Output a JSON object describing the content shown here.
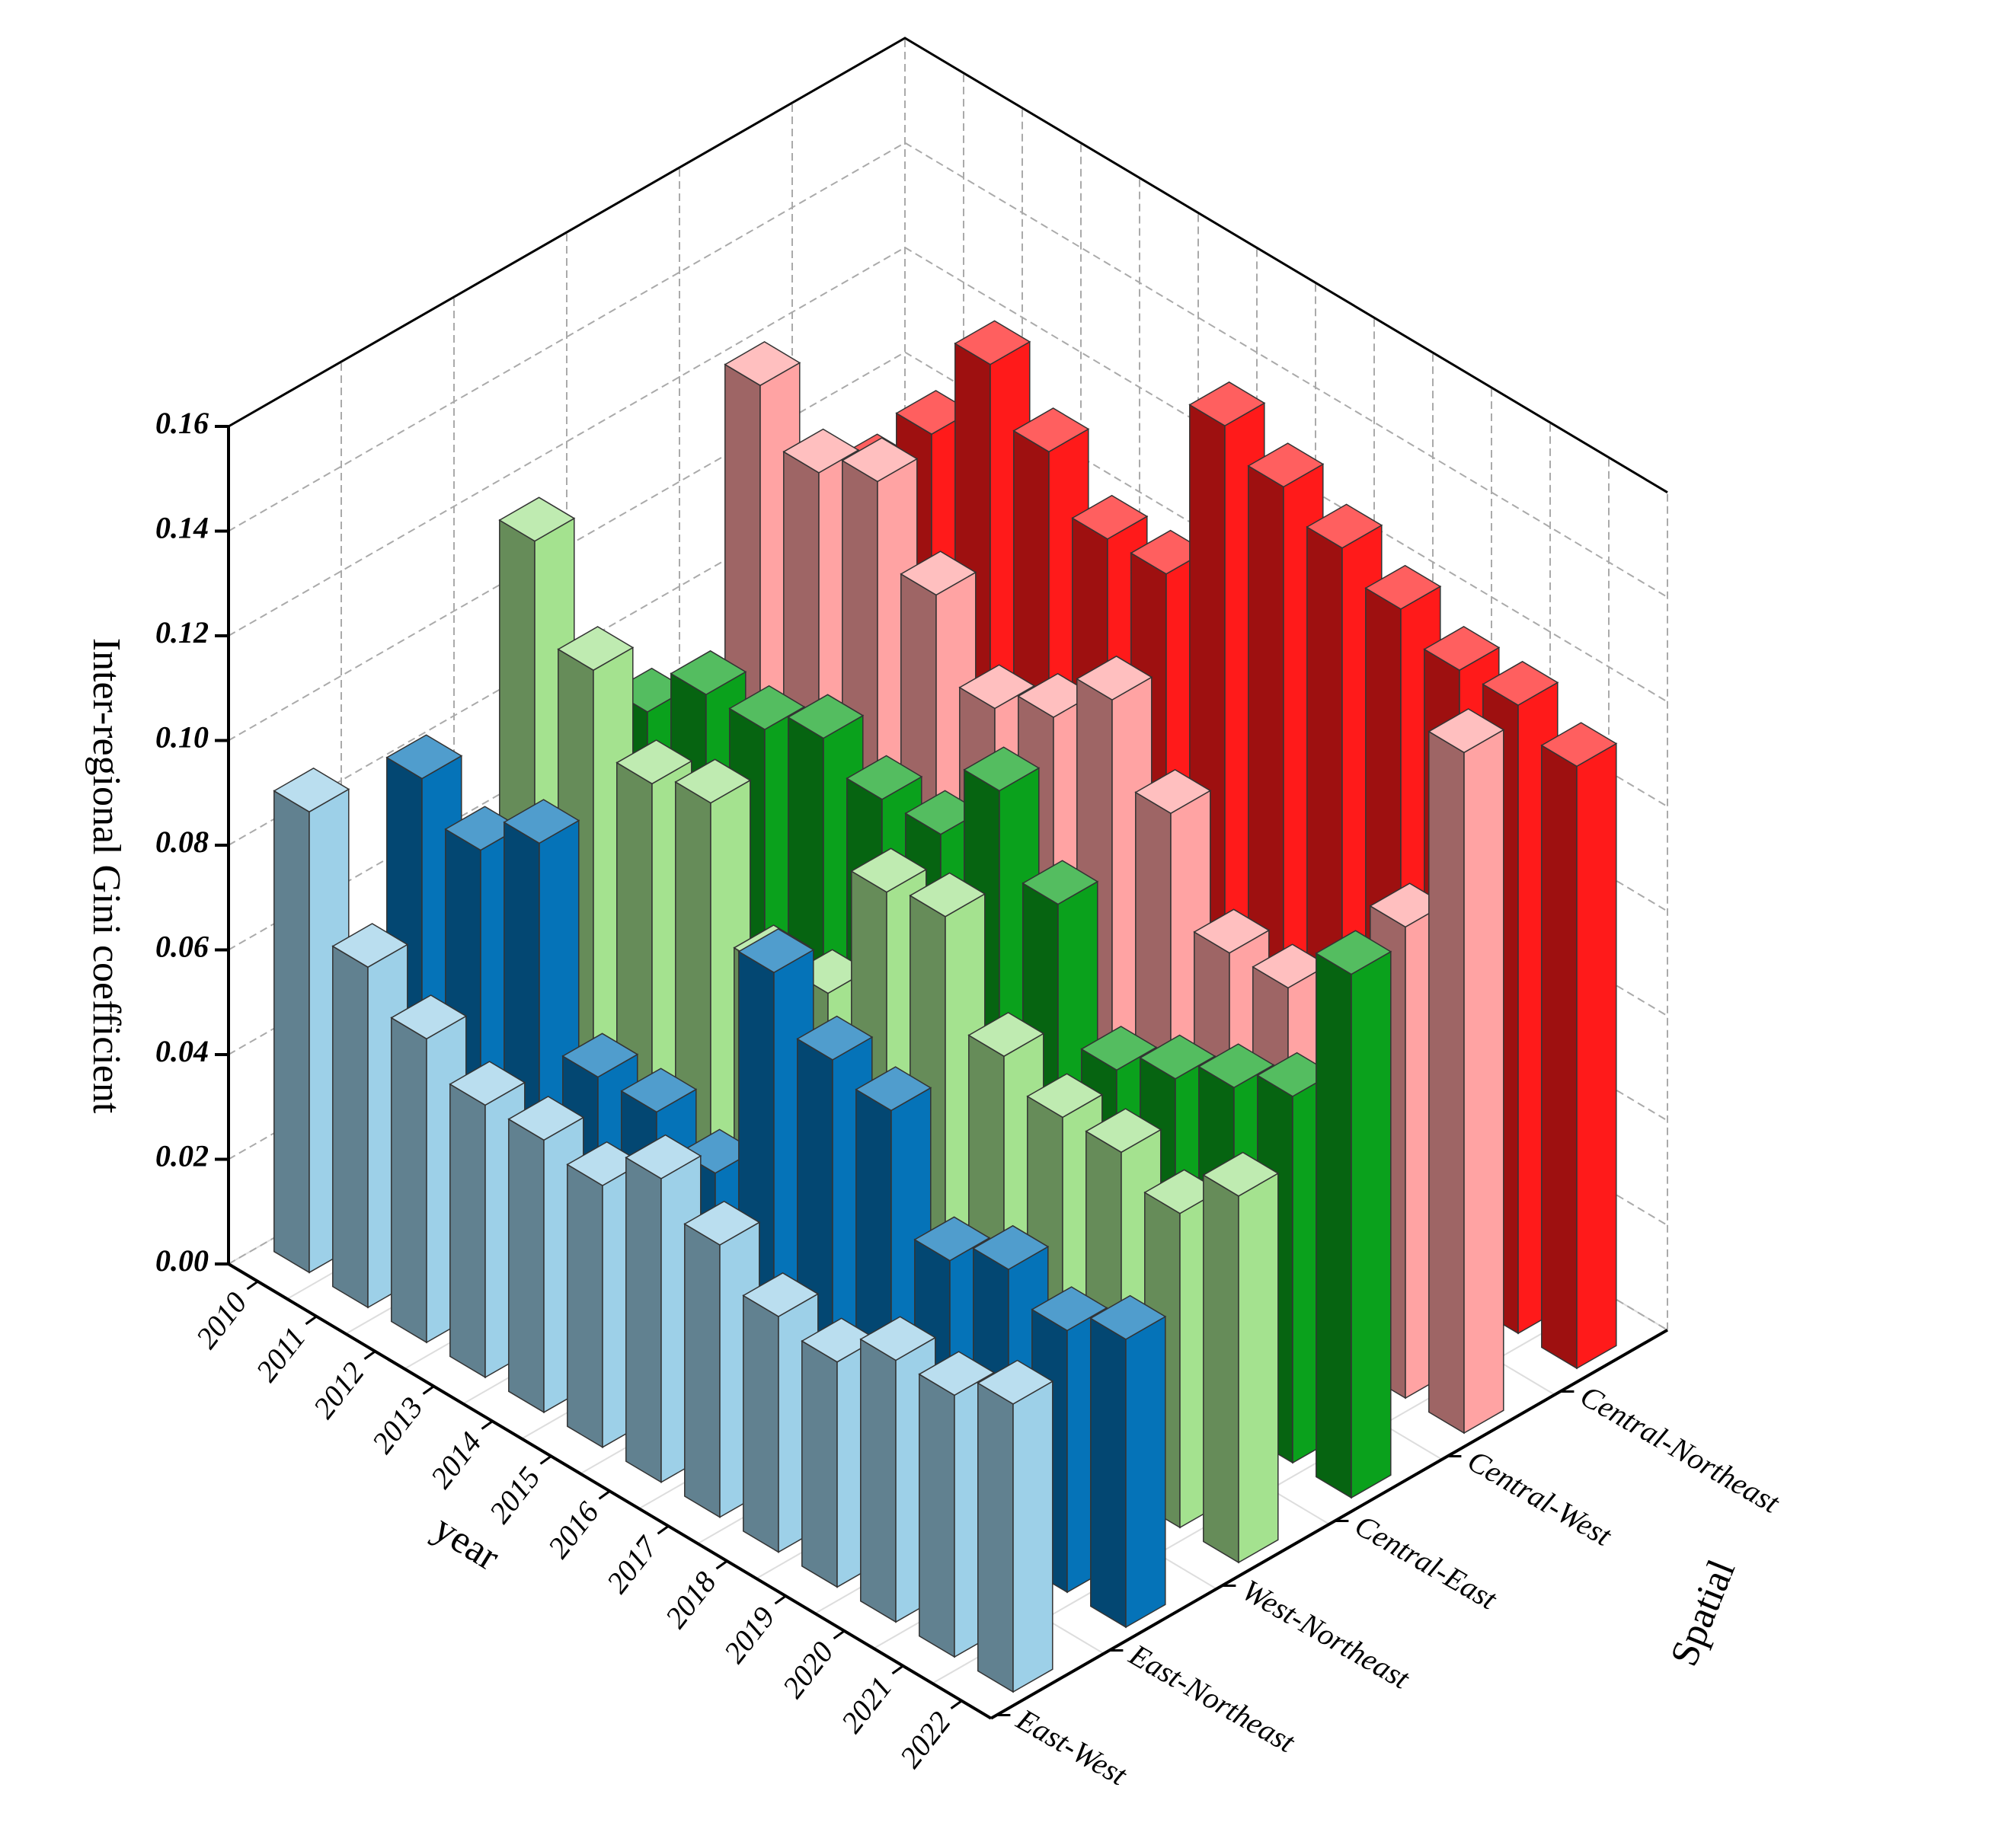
{
  "chart_data": {
    "type": "bar3d",
    "y_label": "Inter-regional Gini coefficient",
    "x_label": "year",
    "z_label": "Spatial",
    "categories": [
      "2010",
      "2011",
      "2012",
      "2013",
      "2014",
      "2015",
      "2016",
      "2017",
      "2018",
      "2019",
      "2020",
      "2021",
      "2022"
    ],
    "series": [
      {
        "name": "East-West",
        "color": "#9dd0e8",
        "values": [
          0.088,
          0.065,
          0.058,
          0.052,
          0.052,
          0.05,
          0.058,
          0.052,
          0.045,
          0.043,
          0.05,
          0.05,
          0.055
        ]
      },
      {
        "name": "East-Northeast",
        "color": "#0573b8",
        "values": [
          0.082,
          0.075,
          0.083,
          0.045,
          0.045,
          0.04,
          0.085,
          0.075,
          0.072,
          0.05,
          0.055,
          0.05,
          0.055
        ]
      },
      {
        "name": "West-Northeast",
        "color": "#a4e28f",
        "values": [
          0.115,
          0.097,
          0.082,
          0.085,
          0.06,
          0.062,
          0.088,
          0.09,
          0.07,
          0.065,
          0.065,
          0.06,
          0.07
        ]
      },
      {
        "name": "Central-East",
        "color": "#0aa11c",
        "values": [
          0.07,
          0.08,
          0.08,
          0.085,
          0.08,
          0.08,
          0.095,
          0.08,
          0.055,
          0.06,
          0.065,
          0.07,
          0.1
        ]
      },
      {
        "name": "Central-West",
        "color": "#ffa3a3",
        "values": [
          0.12,
          0.11,
          0.115,
          0.1,
          0.085,
          0.09,
          0.1,
          0.085,
          0.065,
          0.065,
          0.045,
          0.09,
          0.13
        ]
      },
      {
        "name": "Central-Northeast",
        "color": "#ff1a1a",
        "values": [
          0.09,
          0.105,
          0.125,
          0.115,
          0.105,
          0.105,
          0.14,
          0.135,
          0.13,
          0.125,
          0.12,
          0.12,
          0.115
        ]
      }
    ],
    "ylim": [
      0,
      0.16
    ],
    "yticks": [
      {
        "value": 0,
        "label": "0.00"
      },
      0.02,
      0.04,
      0.06,
      0.08,
      {
        "value": 0.1,
        "label": "0.10"
      },
      0.12,
      0.14,
      0.16
    ],
    "grid": true
  }
}
